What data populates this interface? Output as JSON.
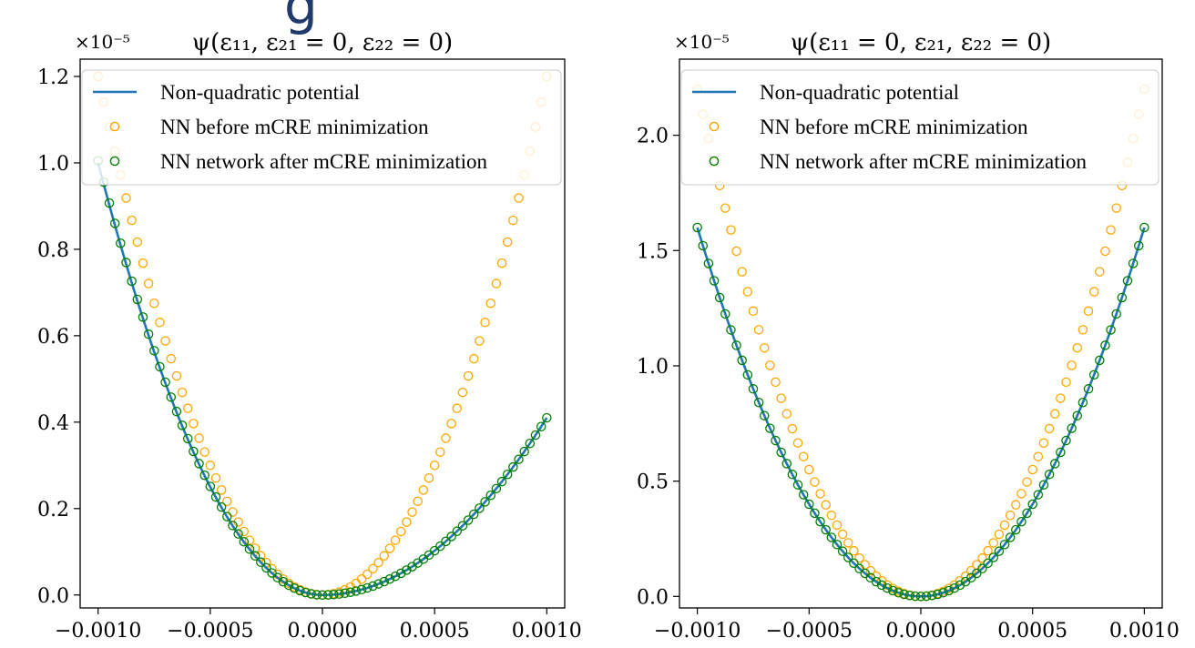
{
  "header_fragment": "g",
  "chart_data": [
    {
      "type": "line",
      "title": "ψ(ε₁₁, ε₂₁ = 0, ε₂₂ = 0)",
      "y_multiplier": "×10⁻⁵",
      "xlim": [
        -0.00108,
        0.00108
      ],
      "ylim": [
        -0.03,
        1.24
      ],
      "x_ticks": [
        -0.001,
        -0.0005,
        0.0,
        0.0005,
        0.001
      ],
      "x_tick_labels": [
        "−0.0010",
        "−0.0005",
        "0.0000",
        "0.0005",
        "0.0010"
      ],
      "y_ticks": [
        0.0,
        0.2,
        0.4,
        0.6,
        0.8,
        1.0,
        1.2
      ],
      "y_tick_labels": [
        "0.0",
        "0.2",
        "0.4",
        "0.6",
        "0.8",
        "1.0",
        "1.2"
      ],
      "x_range": [
        -0.001,
        0.001
      ],
      "n_points": 81,
      "legend_position": "top-right",
      "series": [
        {
          "name": "Non-quadratic potential",
          "style": "line",
          "color": "#1f77b4",
          "model": "asym",
          "coef_neg": 1.0,
          "coef_pos": 0.41
        },
        {
          "name": "NN before mCRE minimization",
          "style": "marker",
          "color": "#ffa500",
          "model": "asym",
          "coef_neg": 1.2,
          "coef_pos": 1.2
        },
        {
          "name": "NN network after mCRE minimization",
          "style": "marker",
          "color": "#008000",
          "model": "asym",
          "coef_neg": 1.005,
          "coef_pos": 0.41
        }
      ]
    },
    {
      "type": "line",
      "title": "ψ(ε₁₁ = 0, ε₂₁, ε₂₂ = 0)",
      "y_multiplier": "×10⁻⁵",
      "xlim": [
        -0.00108,
        0.00108
      ],
      "ylim": [
        -0.05,
        2.33
      ],
      "x_ticks": [
        -0.001,
        -0.0005,
        0.0,
        0.0005,
        0.001
      ],
      "x_tick_labels": [
        "−0.0010",
        "−0.0005",
        "0.0000",
        "0.0005",
        "0.0010"
      ],
      "y_ticks": [
        0.0,
        0.5,
        1.0,
        1.5,
        2.0
      ],
      "y_tick_labels": [
        "0.0",
        "0.5",
        "1.0",
        "1.5",
        "2.0"
      ],
      "x_range": [
        -0.001,
        0.001
      ],
      "n_points": 81,
      "legend_position": "top-right",
      "series": [
        {
          "name": "Non-quadratic potential",
          "style": "line",
          "color": "#1f77b4",
          "model": "asym",
          "coef_neg": 1.6,
          "coef_pos": 1.6
        },
        {
          "name": "NN before mCRE minimization",
          "style": "marker",
          "color": "#ffa500",
          "model": "asym",
          "coef_neg": 2.2,
          "coef_pos": 2.2
        },
        {
          "name": "NN network after mCRE minimization",
          "style": "marker",
          "color": "#008000",
          "model": "asym",
          "coef_neg": 1.6,
          "coef_pos": 1.6
        }
      ]
    }
  ]
}
